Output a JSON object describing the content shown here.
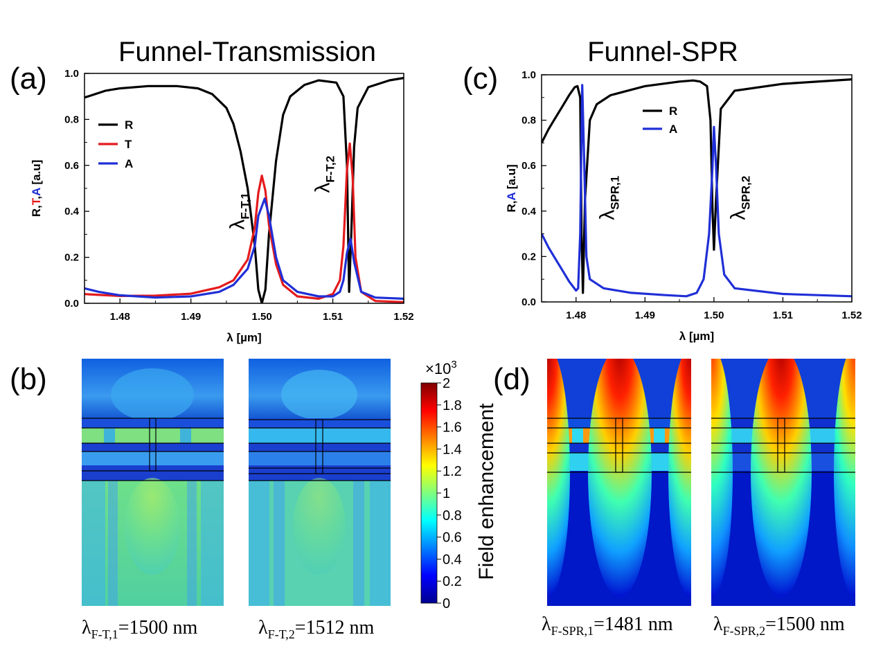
{
  "figure": {
    "panel_labels": {
      "a": "(a)",
      "b": "(b)",
      "c": "(c)",
      "d": "(d)"
    },
    "titles": {
      "left": "Funnel-Transmission",
      "right": "Funnel-SPR"
    },
    "colorbar": {
      "label": "Field enhancement",
      "multiplier": "×10",
      "exponent": "3",
      "ticks": [
        "0",
        "0.2",
        "0.4",
        "0.6",
        "0.8",
        "1",
        "1.2",
        "1.4",
        "1.6",
        "1.8",
        "2"
      ],
      "min": 0,
      "max": 2
    },
    "captions": {
      "b1": {
        "sym": "λ",
        "sub": "F-T,1",
        "text": "=1500 nm"
      },
      "b2": {
        "sym": "λ",
        "sub": "F-T,2",
        "text": "=1512 nm"
      },
      "d1": {
        "sym": "λ",
        "sub": "F-SPR,1",
        "text": "=1481 nm"
      },
      "d2": {
        "sym": "λ",
        "sub": "F-SPR,2",
        "text": "=1500 nm"
      }
    }
  },
  "chart_data": [
    {
      "panel": "(a)",
      "type": "line",
      "title": "Funnel-Transmission",
      "xlabel": "λ [µm]",
      "ylabel_parts": [
        {
          "text": "R",
          "color": "#000000"
        },
        {
          "text": ",",
          "color": "#000000"
        },
        {
          "text": "T",
          "color": "#e41a1c"
        },
        {
          "text": ",",
          "color": "#000000"
        },
        {
          "text": "A",
          "color": "#1f2fd6"
        },
        {
          "text": " [a.u]",
          "color": "#000000"
        }
      ],
      "xlim": [
        1.475,
        1.52
      ],
      "ylim": [
        0,
        1.0
      ],
      "xticks": [
        1.48,
        1.49,
        1.5,
        1.51,
        1.52
      ],
      "xtick_labels": [
        "1.48",
        "1.49",
        "1.50",
        "1.51",
        "1.52"
      ],
      "yticks": [
        0,
        0.2,
        0.4,
        0.6,
        0.8,
        1.0
      ],
      "ytick_labels": [
        "0.0",
        "0.2",
        "0.4",
        "0.6",
        "0.8",
        "1.0"
      ],
      "legend": [
        {
          "label": "R",
          "color": "#000000"
        },
        {
          "label": "T",
          "color": "#e41a1c"
        },
        {
          "label": "A",
          "color": "#1f2fd6"
        }
      ],
      "annotations": [
        {
          "sym": "λ",
          "sub": "F-T,1",
          "x": 1.4975,
          "y": 0.32
        },
        {
          "sym": "λ",
          "sub": "F-T,2",
          "x": 1.5095,
          "y": 0.48
        }
      ],
      "series": [
        {
          "name": "R",
          "color": "#000000",
          "points": [
            [
              1.475,
              0.895
            ],
            [
              1.478,
              0.925
            ],
            [
              1.48,
              0.935
            ],
            [
              1.484,
              0.945
            ],
            [
              1.488,
              0.945
            ],
            [
              1.491,
              0.935
            ],
            [
              1.493,
              0.91
            ],
            [
              1.495,
              0.85
            ],
            [
              1.496,
              0.78
            ],
            [
              1.497,
              0.66
            ],
            [
              1.498,
              0.5
            ],
            [
              1.499,
              0.25
            ],
            [
              1.4995,
              0.06
            ],
            [
              1.5,
              0.0
            ],
            [
              1.5005,
              0.06
            ],
            [
              1.501,
              0.3
            ],
            [
              1.502,
              0.62
            ],
            [
              1.503,
              0.82
            ],
            [
              1.504,
              0.9
            ],
            [
              1.506,
              0.95
            ],
            [
              1.508,
              0.97
            ],
            [
              1.5105,
              0.96
            ],
            [
              1.5115,
              0.9
            ],
            [
              1.512,
              0.6
            ],
            [
              1.5123,
              0.05
            ],
            [
              1.5126,
              0.3
            ],
            [
              1.513,
              0.68
            ],
            [
              1.5135,
              0.85
            ],
            [
              1.515,
              0.94
            ],
            [
              1.518,
              0.97
            ],
            [
              1.52,
              0.98
            ]
          ]
        },
        {
          "name": "T",
          "color": "#e41a1c",
          "points": [
            [
              1.475,
              0.04
            ],
            [
              1.48,
              0.032
            ],
            [
              1.485,
              0.033
            ],
            [
              1.49,
              0.042
            ],
            [
              1.494,
              0.07
            ],
            [
              1.496,
              0.1
            ],
            [
              1.498,
              0.19
            ],
            [
              1.499,
              0.33
            ],
            [
              1.4995,
              0.48
            ],
            [
              1.5,
              0.555
            ],
            [
              1.5005,
              0.49
            ],
            [
              1.501,
              0.34
            ],
            [
              1.502,
              0.17
            ],
            [
              1.503,
              0.08
            ],
            [
              1.505,
              0.03
            ],
            [
              1.508,
              0.02
            ],
            [
              1.51,
              0.04
            ],
            [
              1.511,
              0.1
            ],
            [
              1.5115,
              0.25
            ],
            [
              1.512,
              0.58
            ],
            [
              1.5124,
              0.695
            ],
            [
              1.5128,
              0.55
            ],
            [
              1.5132,
              0.2
            ],
            [
              1.514,
              0.05
            ],
            [
              1.516,
              0.01
            ],
            [
              1.52,
              0.005
            ]
          ]
        },
        {
          "name": "A",
          "color": "#1f2fd6",
          "points": [
            [
              1.475,
              0.065
            ],
            [
              1.477,
              0.05
            ],
            [
              1.48,
              0.035
            ],
            [
              1.485,
              0.025
            ],
            [
              1.49,
              0.03
            ],
            [
              1.494,
              0.05
            ],
            [
              1.496,
              0.08
            ],
            [
              1.498,
              0.15
            ],
            [
              1.499,
              0.25
            ],
            [
              1.4995,
              0.38
            ],
            [
              1.5004,
              0.455
            ],
            [
              1.501,
              0.38
            ],
            [
              1.502,
              0.2
            ],
            [
              1.503,
              0.1
            ],
            [
              1.505,
              0.05
            ],
            [
              1.508,
              0.03
            ],
            [
              1.51,
              0.03
            ],
            [
              1.511,
              0.05
            ],
            [
              1.5115,
              0.1
            ],
            [
              1.512,
              0.22
            ],
            [
              1.5125,
              0.28
            ],
            [
              1.513,
              0.18
            ],
            [
              1.514,
              0.05
            ],
            [
              1.516,
              0.025
            ],
            [
              1.52,
              0.02
            ]
          ]
        }
      ]
    },
    {
      "panel": "(c)",
      "type": "line",
      "title": "Funnel-SPR",
      "xlabel": "λ [µm]",
      "ylabel_parts": [
        {
          "text": "R",
          "color": "#000000"
        },
        {
          "text": ",",
          "color": "#000000"
        },
        {
          "text": "A",
          "color": "#1f2fd6"
        },
        {
          "text": " [a.u]",
          "color": "#000000"
        }
      ],
      "xlim": [
        1.475,
        1.52
      ],
      "ylim": [
        0,
        1.0
      ],
      "xticks": [
        1.48,
        1.49,
        1.5,
        1.51,
        1.52
      ],
      "xtick_labels": [
        "1.48",
        "1.49",
        "1.50",
        "1.51",
        "1.52"
      ],
      "yticks": [
        0,
        0.2,
        0.4,
        0.6,
        0.8,
        1.0
      ],
      "ytick_labels": [
        "0.0",
        "0.2",
        "0.4",
        "0.6",
        "0.8",
        "1.0"
      ],
      "legend": [
        {
          "label": "R",
          "color": "#000000"
        },
        {
          "label": "A",
          "color": "#1f2fd6"
        }
      ],
      "annotations": [
        {
          "sym": "λ",
          "sub": "SPR,1",
          "x": 1.4855,
          "y": 0.36
        },
        {
          "sym": "λ",
          "sub": "SPR,2",
          "x": 1.5045,
          "y": 0.36
        }
      ],
      "series": [
        {
          "name": "R",
          "color": "#000000",
          "points": [
            [
              1.475,
              0.7
            ],
            [
              1.476,
              0.76
            ],
            [
              1.477,
              0.81
            ],
            [
              1.478,
              0.86
            ],
            [
              1.479,
              0.91
            ],
            [
              1.4798,
              0.945
            ],
            [
              1.4802,
              0.95
            ],
            [
              1.4806,
              0.9
            ],
            [
              1.4808,
              0.3
            ],
            [
              1.481,
              0.04
            ],
            [
              1.4813,
              0.45
            ],
            [
              1.482,
              0.8
            ],
            [
              1.483,
              0.87
            ],
            [
              1.485,
              0.91
            ],
            [
              1.49,
              0.95
            ],
            [
              1.495,
              0.97
            ],
            [
              1.497,
              0.975
            ],
            [
              1.498,
              0.97
            ],
            [
              1.499,
              0.95
            ],
            [
              1.4995,
              0.8
            ],
            [
              1.4998,
              0.4
            ],
            [
              1.5,
              0.23
            ],
            [
              1.5003,
              0.45
            ],
            [
              1.501,
              0.85
            ],
            [
              1.503,
              0.93
            ],
            [
              1.51,
              0.96
            ],
            [
              1.52,
              0.98
            ]
          ]
        },
        {
          "name": "A",
          "color": "#1f2fd6",
          "points": [
            [
              1.475,
              0.3
            ],
            [
              1.476,
              0.24
            ],
            [
              1.477,
              0.19
            ],
            [
              1.478,
              0.14
            ],
            [
              1.479,
              0.09
            ],
            [
              1.48,
              0.05
            ],
            [
              1.4803,
              0.06
            ],
            [
              1.4806,
              0.3
            ],
            [
              1.4809,
              0.955
            ],
            [
              1.4812,
              0.6
            ],
            [
              1.4815,
              0.2
            ],
            [
              1.482,
              0.1
            ],
            [
              1.484,
              0.06
            ],
            [
              1.488,
              0.04
            ],
            [
              1.493,
              0.03
            ],
            [
              1.496,
              0.025
            ],
            [
              1.4975,
              0.04
            ],
            [
              1.4985,
              0.1
            ],
            [
              1.4993,
              0.3
            ],
            [
              1.4998,
              0.6
            ],
            [
              1.5,
              0.77
            ],
            [
              1.5003,
              0.6
            ],
            [
              1.5007,
              0.3
            ],
            [
              1.5015,
              0.12
            ],
            [
              1.503,
              0.06
            ],
            [
              1.51,
              0.035
            ],
            [
              1.52,
              0.025
            ]
          ]
        }
      ]
    },
    {
      "panel": "(b)",
      "type": "heatmap",
      "maps": [
        {
          "name": "F-T,1",
          "variant": "t1"
        },
        {
          "name": "F-T,2",
          "variant": "t2"
        }
      ]
    },
    {
      "panel": "(d)",
      "type": "heatmap",
      "maps": [
        {
          "name": "F-SPR,1",
          "variant": "s1"
        },
        {
          "name": "F-SPR,2",
          "variant": "s2"
        }
      ]
    }
  ]
}
